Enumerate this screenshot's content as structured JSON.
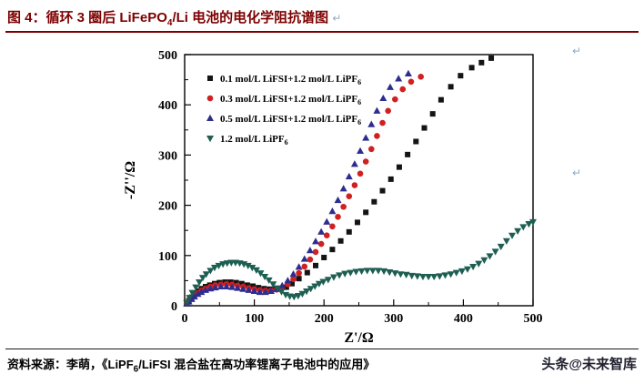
{
  "header": {
    "title_pre": "图 4：循环 3 圈后 LiFePO",
    "title_sub": "4",
    "title_post": "/Li 电池的电化学阻抗谱图",
    "accent_color": "#7d0000"
  },
  "marks": {
    "pilcrow": "↵"
  },
  "chart_data": {
    "type": "scatter",
    "title": "",
    "xlabel": "Z'/Ω",
    "ylabel": "-Z''/Ω",
    "xlim": [
      0,
      500
    ],
    "ylim": [
      0,
      500
    ],
    "xticks": [
      0,
      100,
      200,
      300,
      400,
      500
    ],
    "yticks": [
      0,
      100,
      200,
      300,
      400,
      500
    ],
    "grid": false,
    "legend_position": "top-left-inside",
    "series": [
      {
        "name_pre": "0.1 mol/L LiFSI+1.2 mol/L LiPF",
        "name_sub": "6",
        "marker": "square",
        "color": "#141414",
        "points": [
          [
            3,
            4
          ],
          [
            6,
            10
          ],
          [
            10,
            17
          ],
          [
            14,
            23
          ],
          [
            19,
            29
          ],
          [
            24,
            34
          ],
          [
            30,
            38
          ],
          [
            36,
            41
          ],
          [
            43,
            44
          ],
          [
            50,
            46
          ],
          [
            58,
            47
          ],
          [
            66,
            47
          ],
          [
            74,
            46
          ],
          [
            82,
            44
          ],
          [
            90,
            41
          ],
          [
            98,
            39
          ],
          [
            106,
            36
          ],
          [
            114,
            34
          ],
          [
            122,
            33
          ],
          [
            130,
            33
          ],
          [
            138,
            34
          ],
          [
            146,
            37
          ],
          [
            154,
            44
          ],
          [
            164,
            54
          ],
          [
            176,
            66
          ],
          [
            188,
            80
          ],
          [
            200,
            96
          ],
          [
            212,
            112
          ],
          [
            224,
            129
          ],
          [
            236,
            147
          ],
          [
            248,
            166
          ],
          [
            260,
            186
          ],
          [
            272,
            207
          ],
          [
            284,
            229
          ],
          [
            296,
            252
          ],
          [
            308,
            276
          ],
          [
            320,
            301
          ],
          [
            332,
            327
          ],
          [
            344,
            354
          ],
          [
            356,
            382
          ],
          [
            368,
            410
          ],
          [
            382,
            436
          ],
          [
            396,
            458
          ],
          [
            412,
            474
          ],
          [
            426,
            484
          ],
          [
            440,
            493
          ]
        ]
      },
      {
        "name_pre": "0.3 mol/L LiFSI+1.2 mol/L LiPF",
        "name_sub": "6",
        "marker": "circle",
        "color": "#d02020",
        "points": [
          [
            3,
            4
          ],
          [
            6,
            9
          ],
          [
            10,
            14
          ],
          [
            14,
            20
          ],
          [
            19,
            25
          ],
          [
            24,
            30
          ],
          [
            30,
            34
          ],
          [
            37,
            38
          ],
          [
            44,
            41
          ],
          [
            52,
            42
          ],
          [
            60,
            43
          ],
          [
            68,
            42
          ],
          [
            76,
            40
          ],
          [
            84,
            38
          ],
          [
            92,
            35
          ],
          [
            100,
            33
          ],
          [
            108,
            31
          ],
          [
            116,
            30
          ],
          [
            124,
            30
          ],
          [
            132,
            32
          ],
          [
            140,
            36
          ],
          [
            148,
            43
          ],
          [
            156,
            53
          ],
          [
            164,
            65
          ],
          [
            172,
            78
          ],
          [
            180,
            92
          ],
          [
            188,
            107
          ],
          [
            196,
            123
          ],
          [
            204,
            140
          ],
          [
            212,
            158
          ],
          [
            220,
            177
          ],
          [
            228,
            197
          ],
          [
            236,
            218
          ],
          [
            244,
            240
          ],
          [
            252,
            263
          ],
          [
            260,
            287
          ],
          [
            268,
            312
          ],
          [
            276,
            338
          ],
          [
            284,
            364
          ],
          [
            292,
            388
          ],
          [
            302,
            411
          ],
          [
            313,
            431
          ],
          [
            325,
            446
          ],
          [
            339,
            456
          ]
        ]
      },
      {
        "name_pre": "0.5 mol/L LiFSI+1.2 mol/L LiPF",
        "name_sub": "6",
        "marker": "triangle-up",
        "color": "#2d2d8f",
        "points": [
          [
            3,
            4
          ],
          [
            6,
            8
          ],
          [
            10,
            13
          ],
          [
            14,
            18
          ],
          [
            19,
            23
          ],
          [
            24,
            27
          ],
          [
            30,
            31
          ],
          [
            37,
            34
          ],
          [
            44,
            36
          ],
          [
            52,
            38
          ],
          [
            60,
            38
          ],
          [
            68,
            37
          ],
          [
            76,
            35
          ],
          [
            84,
            33
          ],
          [
            92,
            31
          ],
          [
            100,
            29
          ],
          [
            108,
            27
          ],
          [
            116,
            27
          ],
          [
            124,
            29
          ],
          [
            132,
            33
          ],
          [
            140,
            40
          ],
          [
            148,
            50
          ],
          [
            156,
            63
          ],
          [
            164,
            77
          ],
          [
            172,
            93
          ],
          [
            180,
            110
          ],
          [
            188,
            128
          ],
          [
            196,
            147
          ],
          [
            204,
            167
          ],
          [
            212,
            188
          ],
          [
            220,
            210
          ],
          [
            228,
            233
          ],
          [
            236,
            257
          ],
          [
            244,
            282
          ],
          [
            252,
            308
          ],
          [
            260,
            334
          ],
          [
            268,
            361
          ],
          [
            276,
            388
          ],
          [
            285,
            413
          ],
          [
            295,
            435
          ],
          [
            307,
            452
          ],
          [
            321,
            462
          ]
        ]
      },
      {
        "name_pre": "1.2 mol/L LiPF",
        "name_sub": "6",
        "marker": "triangle-down",
        "color": "#1e5f52",
        "points": [
          [
            3,
            6
          ],
          [
            7,
            16
          ],
          [
            11,
            26
          ],
          [
            16,
            37
          ],
          [
            21,
            47
          ],
          [
            26,
            56
          ],
          [
            31,
            63
          ],
          [
            37,
            70
          ],
          [
            43,
            76
          ],
          [
            49,
            80
          ],
          [
            55,
            83
          ],
          [
            61,
            85
          ],
          [
            67,
            86
          ],
          [
            73,
            86
          ],
          [
            79,
            85
          ],
          [
            85,
            83
          ],
          [
            91,
            80
          ],
          [
            97,
            76
          ],
          [
            103,
            71
          ],
          [
            109,
            65
          ],
          [
            115,
            58
          ],
          [
            121,
            51
          ],
          [
            127,
            43
          ],
          [
            133,
            35
          ],
          [
            139,
            28
          ],
          [
            145,
            22
          ],
          [
            151,
            19
          ],
          [
            157,
            18
          ],
          [
            163,
            20
          ],
          [
            169,
            24
          ],
          [
            175,
            29
          ],
          [
            181,
            34
          ],
          [
            187,
            39
          ],
          [
            193,
            44
          ],
          [
            199,
            48
          ],
          [
            206,
            52
          ],
          [
            214,
            57
          ],
          [
            222,
            61
          ],
          [
            230,
            64
          ],
          [
            238,
            66
          ],
          [
            246,
            68
          ],
          [
            254,
            69
          ],
          [
            262,
            70
          ],
          [
            270,
            70
          ],
          [
            278,
            70
          ],
          [
            286,
            69
          ],
          [
            294,
            67
          ],
          [
            302,
            65
          ],
          [
            310,
            63
          ],
          [
            318,
            62
          ],
          [
            326,
            60
          ],
          [
            334,
            59
          ],
          [
            342,
            58
          ],
          [
            350,
            58
          ],
          [
            358,
            58
          ],
          [
            366,
            59
          ],
          [
            374,
            61
          ],
          [
            382,
            63
          ],
          [
            390,
            66
          ],
          [
            398,
            69
          ],
          [
            406,
            73
          ],
          [
            414,
            78
          ],
          [
            422,
            84
          ],
          [
            430,
            91
          ],
          [
            438,
            99
          ],
          [
            446,
            108
          ],
          [
            454,
            118
          ],
          [
            462,
            129
          ],
          [
            470,
            140
          ],
          [
            478,
            149
          ],
          [
            486,
            157
          ],
          [
            494,
            163
          ],
          [
            500,
            167
          ]
        ]
      }
    ]
  },
  "footer": {
    "source_pre": "资料来源：李萌，《LiPF",
    "source_sub": "6",
    "source_post": "/LiFSI 混合盐在高功率锂离子电池中的应用》",
    "watermark": "头条@未来智库"
  }
}
